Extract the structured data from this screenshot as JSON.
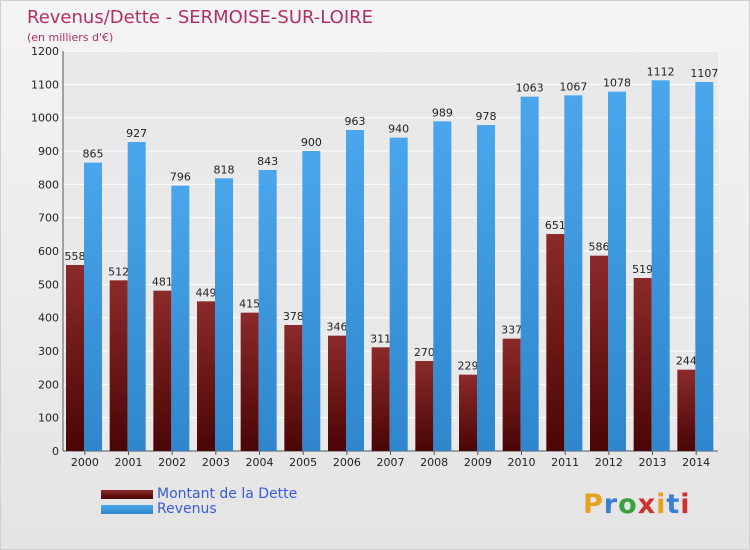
{
  "chart_data": {
    "type": "bar",
    "title": "Revenus/Dette - SERMOISE-SUR-LOIRE",
    "subtitle": "(en milliers d'€)",
    "categories": [
      "2000",
      "2001",
      "2002",
      "2003",
      "2004",
      "2005",
      "2006",
      "2007",
      "2008",
      "2009",
      "2010",
      "2011",
      "2012",
      "2013",
      "2014"
    ],
    "series": [
      {
        "name": "Montant de la Dette",
        "values": [
          558,
          512,
          481,
          449,
          415,
          378,
          346,
          311,
          270,
          229,
          337,
          651,
          586,
          519,
          244
        ],
        "color": "#7a1e1e"
      },
      {
        "name": "Revenus",
        "values": [
          865,
          927,
          796,
          818,
          843,
          900,
          963,
          940,
          989,
          978,
          1063,
          1067,
          1078,
          1112,
          1107
        ],
        "color": "#3a9ae0"
      }
    ],
    "yticks": [
      0,
      100,
      200,
      300,
      400,
      500,
      600,
      700,
      800,
      900,
      1000,
      1100,
      1200
    ],
    "ylim": [
      0,
      1200
    ],
    "grid": true,
    "legend_position": "bottom-left"
  },
  "logo": {
    "letters": [
      "P",
      "r",
      "o",
      "x",
      "i",
      "t",
      "i"
    ],
    "colors": [
      "#e8a020",
      "#3a7fd0",
      "#3aa040",
      "#d03030",
      "#e8a020",
      "#3a7fd0",
      "#d03030"
    ]
  }
}
